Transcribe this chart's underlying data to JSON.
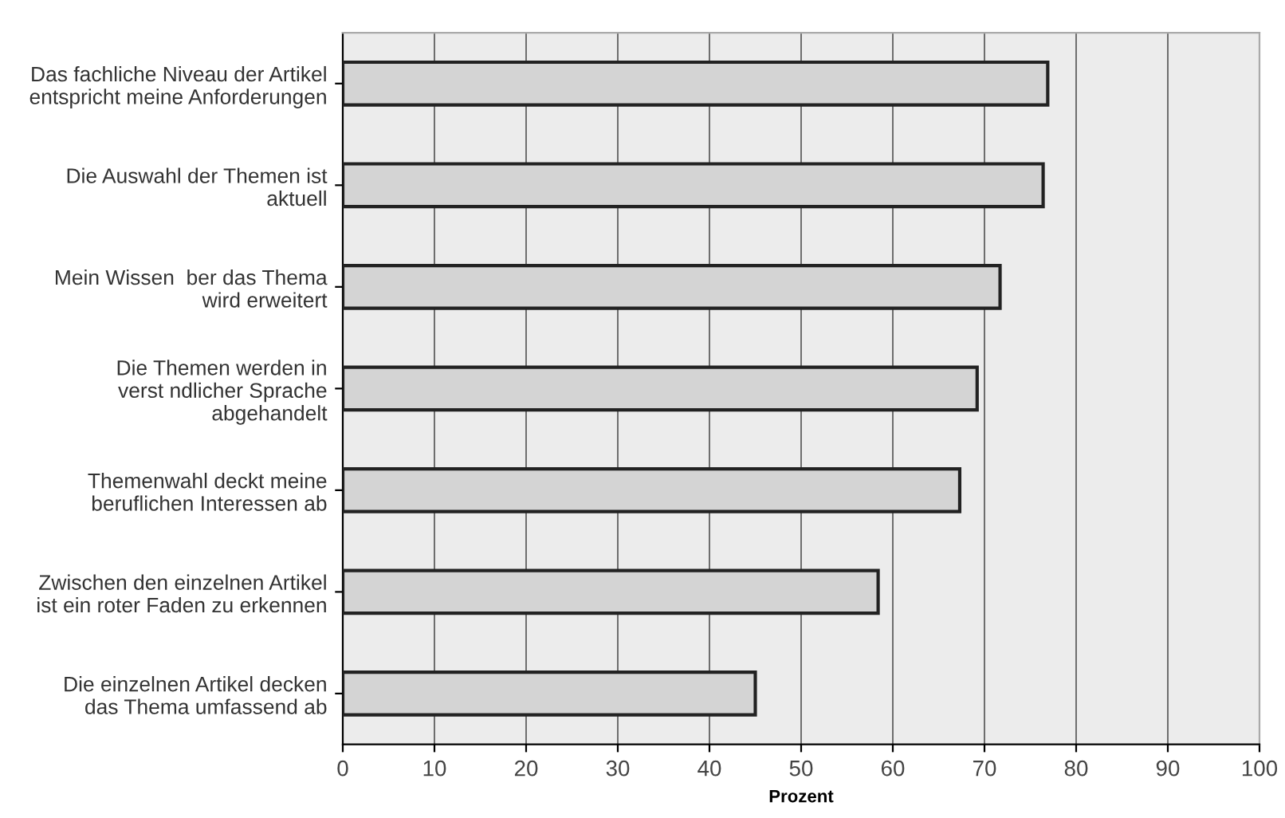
{
  "chart_data": {
    "type": "bar",
    "orientation": "horizontal",
    "xlabel": "Prozent",
    "categories": [
      "Das fachliche Niveau der Artikel\nentspricht meine Anforderungen",
      "Die Auswahl der Themen ist\naktuell",
      "Mein Wissen  ber das Thema\nwird erweitert",
      "Die Themen werden in\nverst ndlicher Sprache\nabgehandelt",
      "Themenwahl deckt meine\nberuflichen Interessen ab",
      "Zwischen den einzelnen Artikel\nist ein roter Faden zu erkennen",
      "Die einzelnen Artikel decken\ndas Thema umfassend ab"
    ],
    "values": [
      76.9,
      76.4,
      71.7,
      69.2,
      67.3,
      58.4,
      45.0
    ],
    "color": "#d4d4d4",
    "xlim": [
      0,
      100
    ],
    "xticks": [
      0,
      10,
      20,
      30,
      40,
      50,
      60,
      70,
      80,
      90,
      100
    ],
    "grid": "x"
  }
}
